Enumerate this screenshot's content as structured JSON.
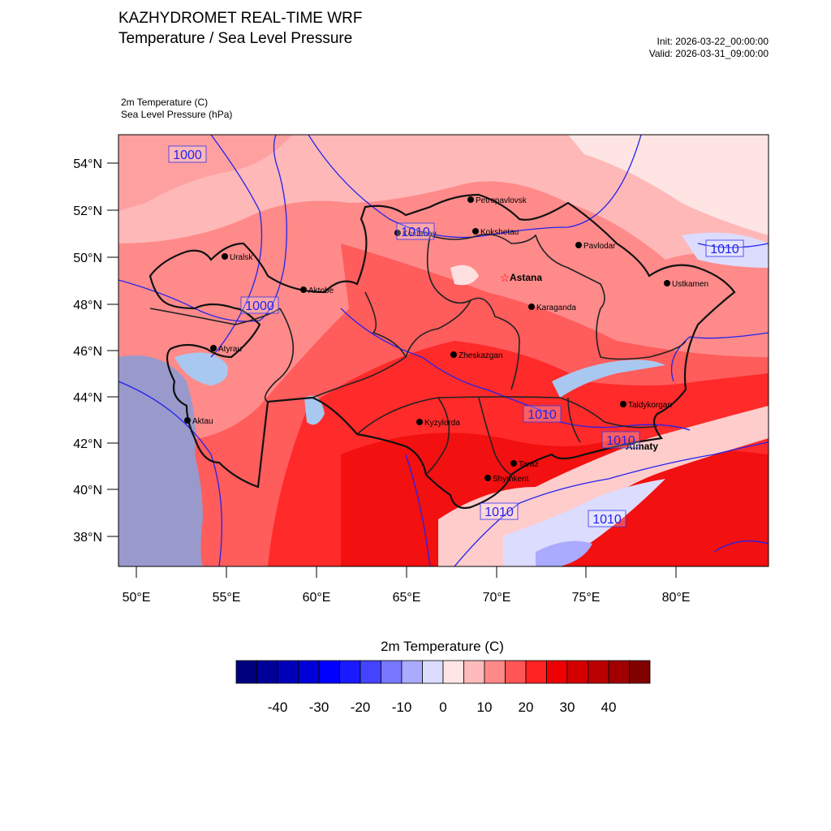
{
  "header": {
    "title": "KAZHYDROMET REAL-TIME WRF",
    "subtitle": "Temperature / Sea Level Pressure",
    "init": "Init: 2026-03-22_00:00:00",
    "valid": "Valid: 2026-03-31_09:00:00",
    "var1": "2m Temperature   (C)",
    "var2": "Sea Level Pressure   (hPa)"
  },
  "axes": {
    "lat_labels": [
      "54°N",
      "52°N",
      "50°N",
      "48°N",
      "46°N",
      "44°N",
      "42°N",
      "40°N",
      "38°N"
    ],
    "lon_labels": [
      "50°E",
      "55°E",
      "60°E",
      "65°E",
      "70°E",
      "75°E",
      "80°E"
    ]
  },
  "cities": [
    {
      "name": "Petropavlovsk"
    },
    {
      "name": "Kostanay"
    },
    {
      "name": "Kokshetau"
    },
    {
      "name": "Pavlodar"
    },
    {
      "name": "Uralsk"
    },
    {
      "name": "Aktobe"
    },
    {
      "name": "Astana"
    },
    {
      "name": "Ustkamen"
    },
    {
      "name": "Karaganda"
    },
    {
      "name": "Atyrau"
    },
    {
      "name": "Zheskazgan"
    },
    {
      "name": "Taldykorgan"
    },
    {
      "name": "Aktau"
    },
    {
      "name": "Kyzylorda"
    },
    {
      "name": "Almaty"
    },
    {
      "name": "Taraz"
    },
    {
      "name": "Shymkent"
    }
  ],
  "isobar_labels": [
    "1000",
    "1010",
    "1000",
    "1010",
    "1010",
    "1010",
    "1010",
    "1010"
  ],
  "colorbar": {
    "title": "2m Temperature  (C)",
    "labels": [
      "-40",
      "-30",
      "-20",
      "-10",
      "0",
      "10",
      "20",
      "30",
      "40"
    ],
    "colors": [
      "#00007f",
      "#000099",
      "#0000b8",
      "#0000d9",
      "#0000ff",
      "#1a1aff",
      "#4444ff",
      "#7777ff",
      "#aaaaff",
      "#dcdcff",
      "#ffe6e6",
      "#ffbbbb",
      "#ff8888",
      "#ff5555",
      "#ff2222",
      "#ee0000",
      "#d40000",
      "#bb0000",
      "#a00000",
      "#800000"
    ]
  },
  "colors": {
    "land_warm": "#ff3a3a",
    "land_mid": "#ff7070",
    "land_cool": "#ffb4b4",
    "sea": "#9999cc",
    "lake": "#a8c8f0",
    "isobar": "#2222ee"
  }
}
